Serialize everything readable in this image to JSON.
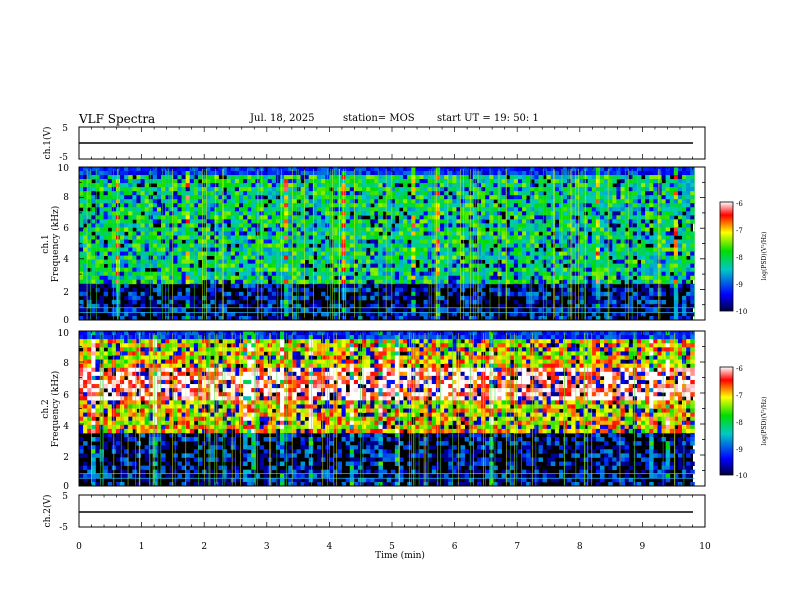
{
  "header": {
    "title": "VLF Spectra",
    "date": "Jul. 18, 2025",
    "station": "station= MOS",
    "start_ut": "start UT =   19: 50: 1"
  },
  "chart_data": [
    {
      "type": "line",
      "panel": "ch1-waveform",
      "ylabel": "ch.1(V)",
      "ylim": [
        -5,
        5
      ],
      "y_ticks": [
        "5",
        "-5"
      ],
      "xlim": [
        0,
        10
      ],
      "series": [
        {
          "x": [
            0,
            9.83
          ],
          "y": [
            0,
            0
          ]
        }
      ]
    },
    {
      "type": "heatmap",
      "panel": "ch1-spectrogram",
      "ylabel": [
        "ch.1",
        "Frequency (kHz)"
      ],
      "ylim": [
        0,
        10
      ],
      "y_ticks": [
        "0",
        "2",
        "4",
        "6",
        "8",
        "10"
      ],
      "xlim": [
        0,
        10
      ],
      "data_x_end": 9.83,
      "dominant_band_khz": [
        2.5,
        9.5
      ],
      "background_level": -10,
      "typical_level": -8,
      "colorbar": {
        "label": "log(PSD)(V²/Hz)",
        "range": [
          -10,
          -6
        ],
        "ticks": [
          "-6",
          "-7",
          "-8",
          "-9",
          "-10"
        ]
      }
    },
    {
      "type": "heatmap",
      "panel": "ch2-spectrogram",
      "ylabel": [
        "ch.2",
        "Frequency (kHz)"
      ],
      "ylim": [
        0,
        10
      ],
      "y_ticks": [
        "0",
        "2",
        "4",
        "6",
        "8",
        "10"
      ],
      "xlim": [
        0,
        10
      ],
      "data_x_end": 9.83,
      "dominant_band_khz": [
        3.5,
        9.5
      ],
      "peak_band_khz": [
        5.5,
        7.5
      ],
      "background_level": -10,
      "typical_level": -7,
      "colorbar": {
        "label": "log(PSD)(V²/Hz)",
        "range": [
          -10,
          -6
        ],
        "ticks": [
          "-6",
          "-7",
          "-8",
          "-9",
          "-10"
        ]
      }
    },
    {
      "type": "line",
      "panel": "ch2-waveform",
      "ylabel": "ch.2(V)",
      "ylim": [
        -5,
        5
      ],
      "y_ticks": [
        "5",
        "-5"
      ],
      "xlim": [
        0,
        10
      ],
      "xlabel": "Time (min)",
      "x_ticks": [
        "0",
        "1",
        "2",
        "3",
        "4",
        "5",
        "6",
        "7",
        "8",
        "9",
        "10"
      ],
      "series": [
        {
          "x": [
            0,
            9.83
          ],
          "y": [
            0,
            0
          ]
        }
      ]
    }
  ]
}
